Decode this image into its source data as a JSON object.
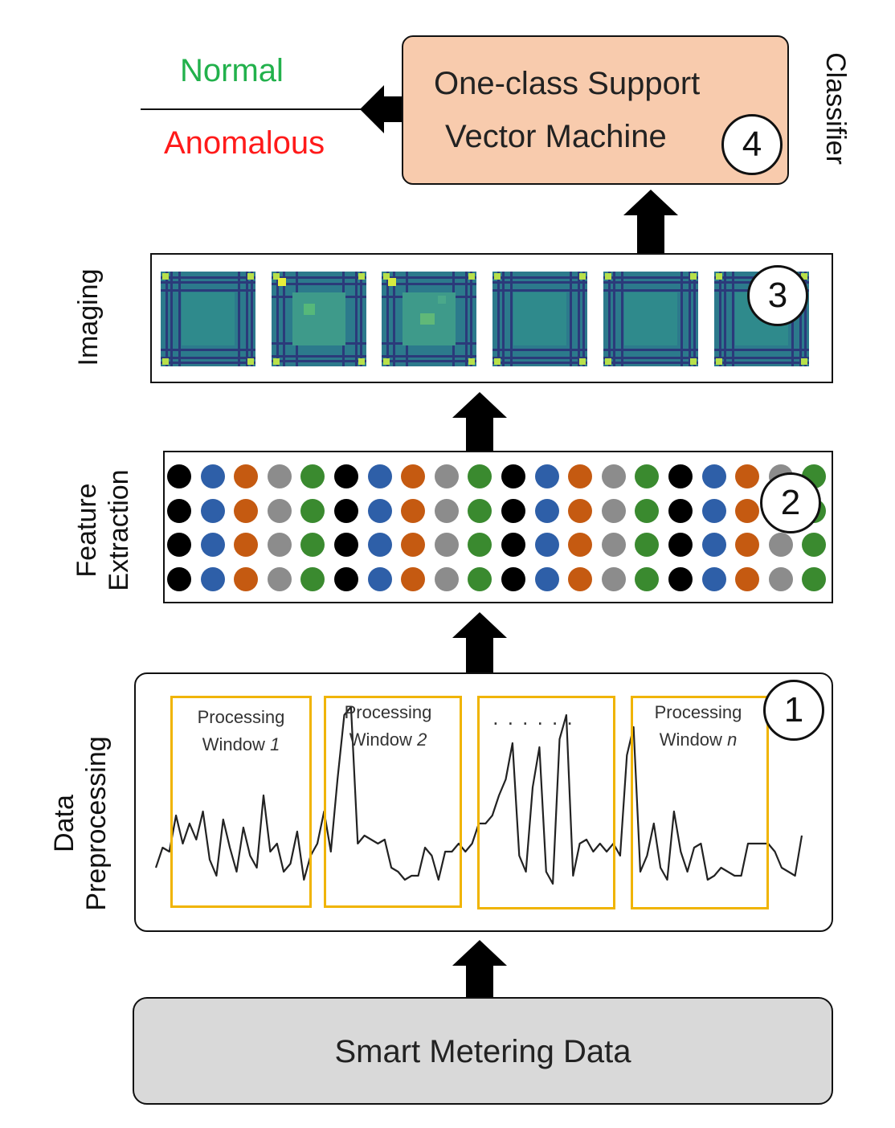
{
  "output": {
    "normal_label": "Normal",
    "anomalous_label": "Anomalous",
    "normal_color": "#22b14c",
    "anomalous_color": "#ff1a1a"
  },
  "classifier": {
    "side_label": "Classifier",
    "line1": "One-class Support",
    "line2": "Vector Machine",
    "step": "4",
    "fill_color": "#f8cbad"
  },
  "imaging": {
    "side_label": "Imaging",
    "step": "3",
    "tile_count": 6
  },
  "feature_extraction": {
    "side_label_line1": "Feature",
    "side_label_line2": "Extraction",
    "step": "2",
    "dot_colors": [
      "#000000",
      "#2e5fa8",
      "#c55a11",
      "#8c8c8c",
      "#3a8a2f"
    ],
    "rows": 4,
    "columns": 20
  },
  "preprocessing": {
    "side_label_line1": "Data",
    "side_label_line2": "Preprocessing",
    "step": "1",
    "window_color": "#f0b400",
    "windows": [
      {
        "line1": "Processing",
        "line2": "Window 1",
        "word": "Window",
        "index": "1"
      },
      {
        "line1": "Processing",
        "line2": "Window 2",
        "word": "Window",
        "index": "2"
      },
      {
        "line1": ". . . . . .",
        "line2": "",
        "word": "",
        "index": ""
      },
      {
        "line1": "Processing",
        "line2": "Window n",
        "word": "Window",
        "index": "n"
      }
    ]
  },
  "source": {
    "label": "Smart Metering Data",
    "fill_color": "#d9d9d9"
  }
}
